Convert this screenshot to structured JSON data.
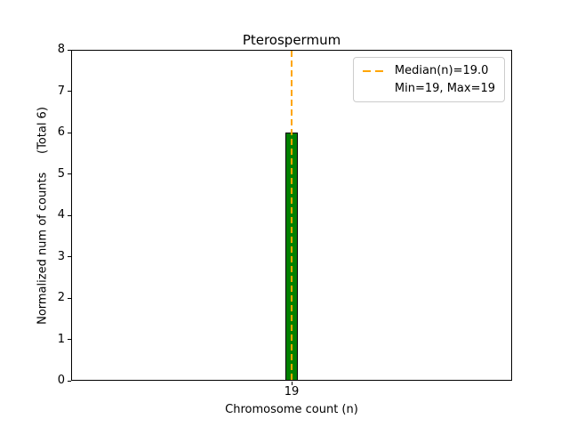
{
  "chart_data": {
    "type": "bar",
    "title": "Pterospermum",
    "xlabel": "Chromosome count (n)",
    "ylabel": "Normalized num of counts     (Total 6)",
    "categories": [
      "19"
    ],
    "values": [
      6
    ],
    "ylim": [
      0,
      8
    ],
    "yticks": [
      0,
      1,
      2,
      3,
      4,
      5,
      6,
      7,
      8
    ],
    "grid": false,
    "bar_color": "#008000",
    "bar_edge_color": "#000000",
    "median_line": {
      "value": 19.0,
      "color": "#ffa500",
      "style": "dashed",
      "orientation": "vertical"
    },
    "legend": {
      "position": "upper right",
      "entries": [
        {
          "label": "Median(n)=19.0",
          "marker": "dashed-orange-line"
        },
        {
          "label": "Min=19, Max=19",
          "marker": "none"
        }
      ]
    }
  }
}
